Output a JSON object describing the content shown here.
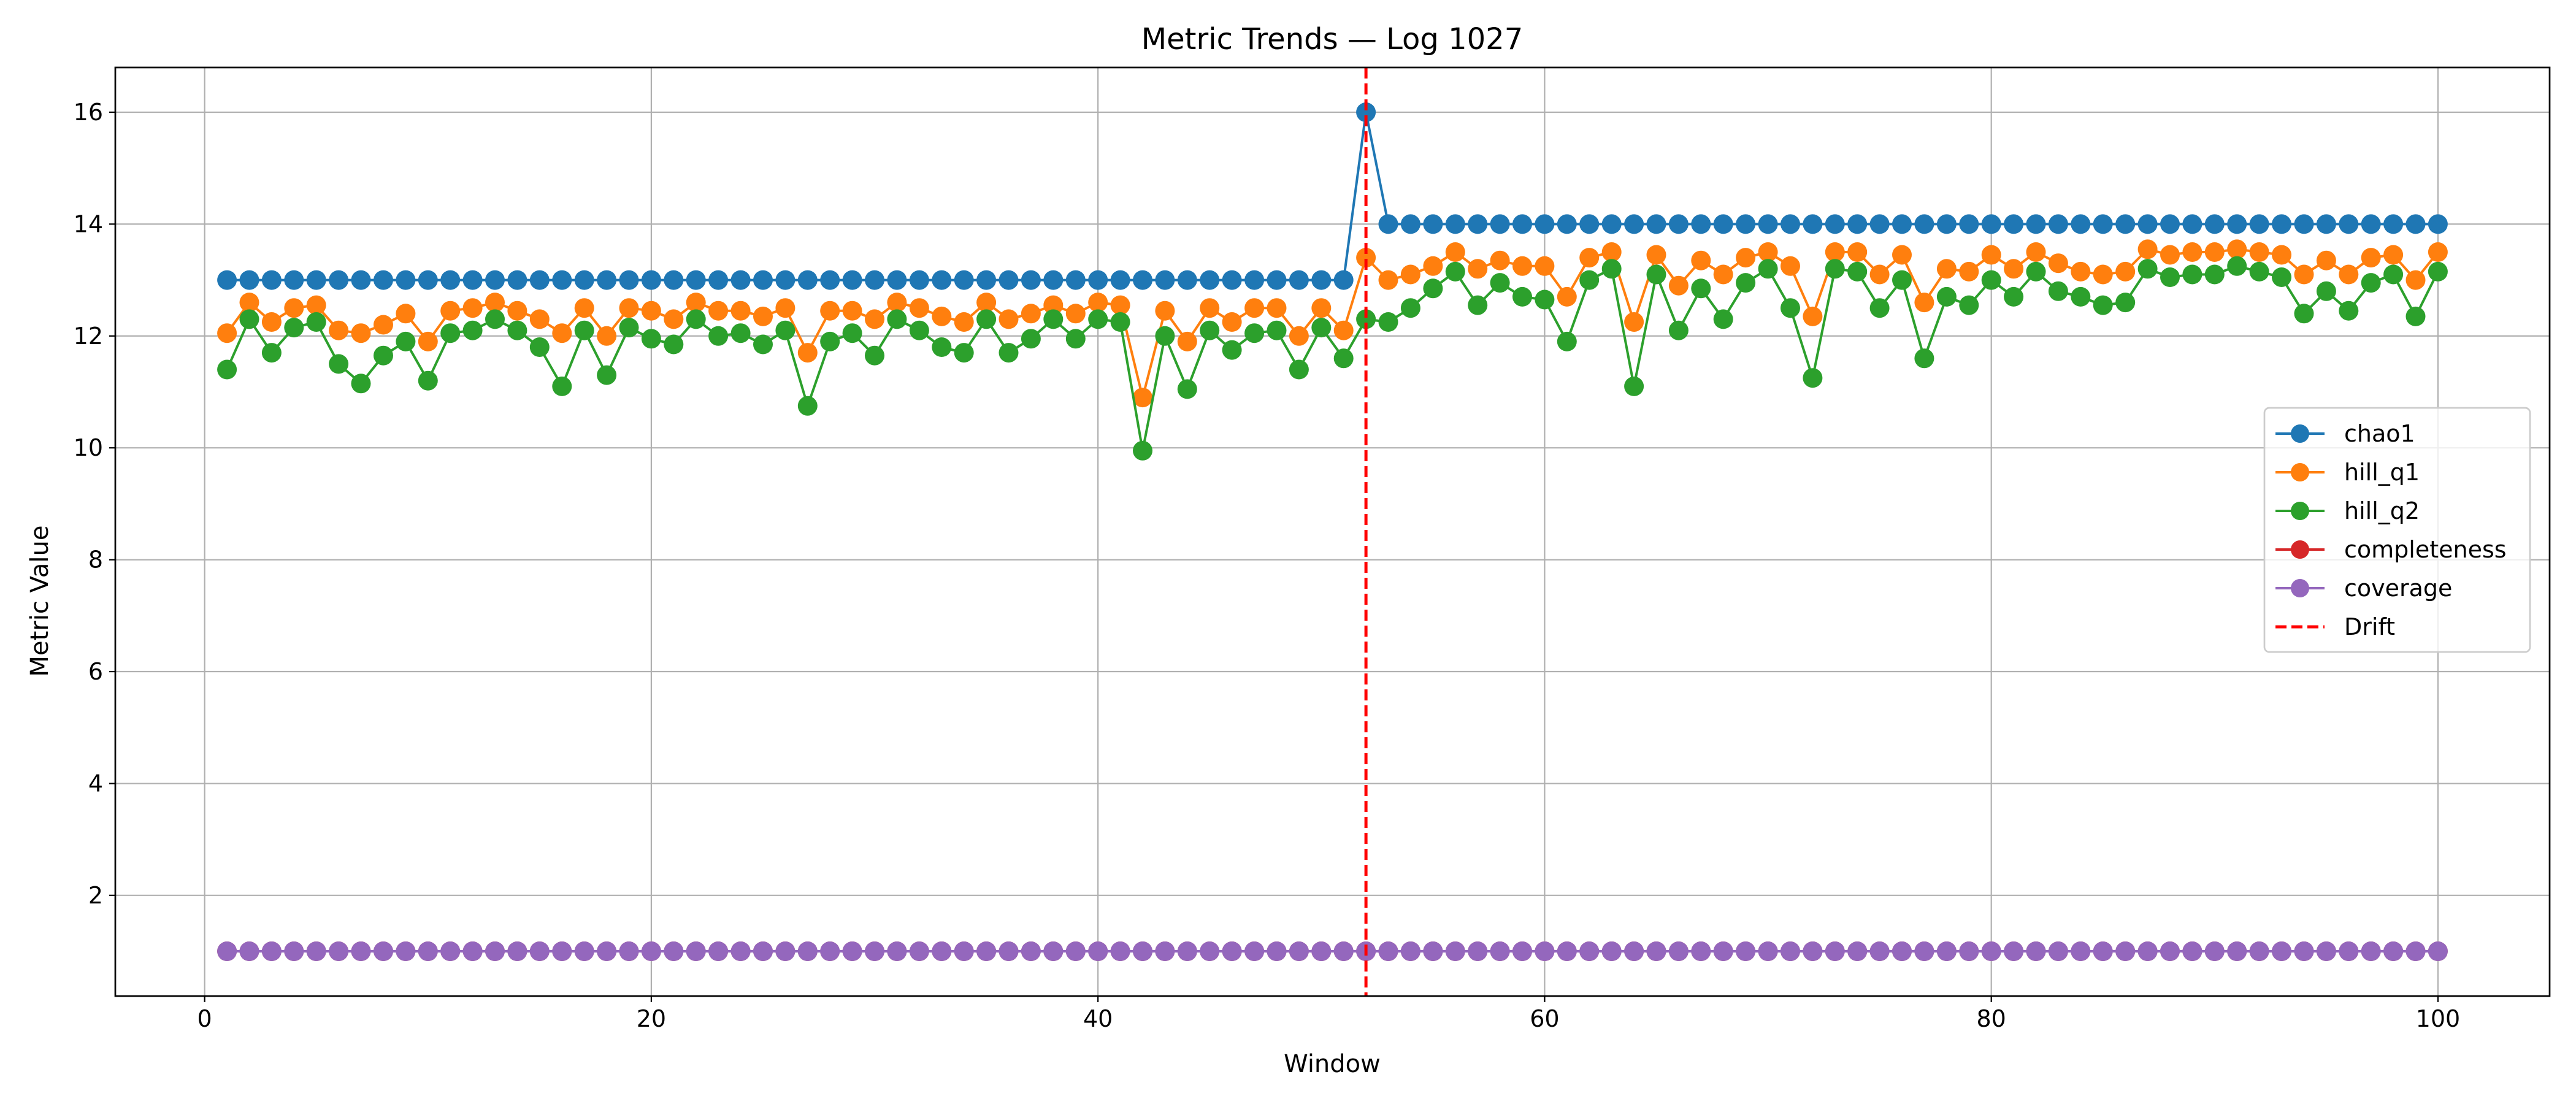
{
  "chart_data": {
    "type": "line",
    "title": "Metric Trends — Log 1027",
    "xlabel": "Window",
    "ylabel": "Metric Value",
    "xlim": [
      -4,
      105
    ],
    "ylim": [
      0.2,
      16.8
    ],
    "xticks": [
      0,
      20,
      40,
      60,
      80,
      100
    ],
    "yticks": [
      2,
      4,
      6,
      8,
      10,
      12,
      14,
      16
    ],
    "grid": true,
    "legend_position": "center-right",
    "drift": {
      "label": "Drift",
      "x": 52,
      "color": "#ff0000"
    },
    "series": [
      {
        "name": "chao1",
        "color": "#1f77b4",
        "x_start": 1,
        "values": [
          13,
          13,
          13,
          13,
          13,
          13,
          13,
          13,
          13,
          13,
          13,
          13,
          13,
          13,
          13,
          13,
          13,
          13,
          13,
          13,
          13,
          13,
          13,
          13,
          13,
          13,
          13,
          13,
          13,
          13,
          13,
          13,
          13,
          13,
          13,
          13,
          13,
          13,
          13,
          13,
          13,
          13,
          13,
          13,
          13,
          13,
          13,
          13,
          13,
          13,
          13,
          16,
          14,
          14,
          14,
          14,
          14,
          14,
          14,
          14,
          14,
          14,
          14,
          14,
          14,
          14,
          14,
          14,
          14,
          14,
          14,
          14,
          14,
          14,
          14,
          14,
          14,
          14,
          14,
          14,
          14,
          14,
          14,
          14,
          14,
          14,
          14,
          14,
          14,
          14,
          14,
          14,
          14,
          14,
          14,
          14,
          14,
          14,
          14,
          14
        ]
      },
      {
        "name": "hill_q1",
        "color": "#ff7f0e",
        "x_start": 1,
        "values": [
          12.05,
          12.6,
          12.25,
          12.5,
          12.55,
          12.1,
          12.05,
          12.2,
          12.4,
          11.9,
          12.45,
          12.5,
          12.6,
          12.45,
          12.3,
          12.05,
          12.5,
          12.0,
          12.5,
          12.45,
          12.3,
          12.6,
          12.45,
          12.45,
          12.35,
          12.5,
          11.7,
          12.45,
          12.45,
          12.3,
          12.6,
          12.5,
          12.35,
          12.25,
          12.6,
          12.3,
          12.4,
          12.55,
          12.4,
          12.6,
          12.55,
          10.9,
          12.45,
          11.9,
          12.5,
          12.25,
          12.5,
          12.5,
          12.0,
          12.5,
          12.1,
          13.4,
          13.0,
          13.1,
          13.25,
          13.5,
          13.2,
          13.35,
          13.25,
          13.25,
          12.7,
          13.4,
          13.5,
          12.25,
          13.45,
          12.9,
          13.35,
          13.1,
          13.4,
          13.5,
          13.25,
          12.35,
          13.5,
          13.5,
          13.1,
          13.45,
          12.6,
          13.2,
          13.15,
          13.45,
          13.2,
          13.5,
          13.3,
          13.15,
          13.1,
          13.15,
          13.55,
          13.45,
          13.5,
          13.5,
          13.55,
          13.5,
          13.45,
          13.1,
          13.35,
          13.1,
          13.4,
          13.45,
          13.0,
          13.5
        ]
      },
      {
        "name": "hill_q2",
        "color": "#2ca02c",
        "x_start": 1,
        "values": [
          11.4,
          12.3,
          11.7,
          12.15,
          12.25,
          11.5,
          11.15,
          11.65,
          11.9,
          11.2,
          12.05,
          12.1,
          12.3,
          12.1,
          11.8,
          11.1,
          12.1,
          11.3,
          12.15,
          11.95,
          11.85,
          12.3,
          12.0,
          12.05,
          11.85,
          12.1,
          10.75,
          11.9,
          12.05,
          11.65,
          12.3,
          12.1,
          11.8,
          11.7,
          12.3,
          11.7,
          11.95,
          12.3,
          11.95,
          12.3,
          12.25,
          9.95,
          12.0,
          11.05,
          12.1,
          11.75,
          12.05,
          12.1,
          11.4,
          12.15,
          11.6,
          12.3,
          12.25,
          12.5,
          12.85,
          13.15,
          12.55,
          12.95,
          12.7,
          12.65,
          11.9,
          13.0,
          13.2,
          11.1,
          13.1,
          12.1,
          12.85,
          12.3,
          12.95,
          13.2,
          12.5,
          11.25,
          13.2,
          13.15,
          12.5,
          13.0,
          11.6,
          12.7,
          12.55,
          13.0,
          12.7,
          13.15,
          12.8,
          12.7,
          12.55,
          12.6,
          13.2,
          13.05,
          13.1,
          13.1,
          13.25,
          13.15,
          13.05,
          12.4,
          12.8,
          12.45,
          12.95,
          13.1,
          12.35,
          13.15
        ]
      },
      {
        "name": "completeness",
        "color": "#d62728",
        "x_start": 1,
        "values": [
          1,
          1,
          1,
          1,
          1,
          1,
          1,
          1,
          1,
          1,
          1,
          1,
          1,
          1,
          1,
          1,
          1,
          1,
          1,
          1,
          1,
          1,
          1,
          1,
          1,
          1,
          1,
          1,
          1,
          1,
          1,
          1,
          1,
          1,
          1,
          1,
          1,
          1,
          1,
          1,
          1,
          1,
          1,
          1,
          1,
          1,
          1,
          1,
          1,
          1,
          1,
          1,
          1,
          1,
          1,
          1,
          1,
          1,
          1,
          1,
          1,
          1,
          1,
          1,
          1,
          1,
          1,
          1,
          1,
          1,
          1,
          1,
          1,
          1,
          1,
          1,
          1,
          1,
          1,
          1,
          1,
          1,
          1,
          1,
          1,
          1,
          1,
          1,
          1,
          1,
          1,
          1,
          1,
          1,
          1,
          1,
          1,
          1,
          1,
          1
        ]
      },
      {
        "name": "coverage",
        "color": "#9467bd",
        "x_start": 1,
        "values": [
          1,
          1,
          1,
          1,
          1,
          1,
          1,
          1,
          1,
          1,
          1,
          1,
          1,
          1,
          1,
          1,
          1,
          1,
          1,
          1,
          1,
          1,
          1,
          1,
          1,
          1,
          1,
          1,
          1,
          1,
          1,
          1,
          1,
          1,
          1,
          1,
          1,
          1,
          1,
          1,
          1,
          1,
          1,
          1,
          1,
          1,
          1,
          1,
          1,
          1,
          1,
          1,
          1,
          1,
          1,
          1,
          1,
          1,
          1,
          1,
          1,
          1,
          1,
          1,
          1,
          1,
          1,
          1,
          1,
          1,
          1,
          1,
          1,
          1,
          1,
          1,
          1,
          1,
          1,
          1,
          1,
          1,
          1,
          1,
          1,
          1,
          1,
          1,
          1,
          1,
          1,
          1,
          1,
          1,
          1,
          1,
          1,
          1,
          1,
          1
        ]
      }
    ]
  }
}
